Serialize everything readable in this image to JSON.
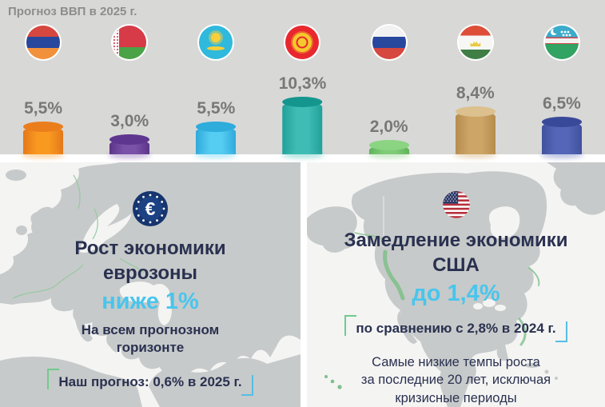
{
  "header": {
    "title": "Прогноз ВВП в 2025 г."
  },
  "chart_data": {
    "type": "bar",
    "title": "Прогноз ВВП в 2025 г.",
    "unit": "%",
    "categories": [
      "Армения",
      "Беларусь",
      "Казахстан",
      "Кыргызстан",
      "Россия",
      "Таджикистан",
      "Узбекистан"
    ],
    "values": [
      5.5,
      3.0,
      5.5,
      10.3,
      2.0,
      8.4,
      6.5
    ],
    "bars": [
      {
        "country": "Армения",
        "value": 5.5,
        "label": "5,5%",
        "color": "#f9991f",
        "color_edge": "#e4781a",
        "color_top": "#ea7e1d"
      },
      {
        "country": "Беларусь",
        "value": 3.0,
        "label": "3,0%",
        "color": "#7a52a8",
        "color_edge": "#5b3489",
        "color_top": "#5e3690"
      },
      {
        "country": "Казахстан",
        "value": 5.5,
        "label": "5,5%",
        "color": "#55ccf2",
        "color_edge": "#2fa9da",
        "color_top": "#2eacdb"
      },
      {
        "country": "Кыргызстан",
        "value": 10.3,
        "label": "10,3%",
        "color": "#3fbdb4",
        "color_edge": "#21a09a",
        "color_top": "#14968f"
      },
      {
        "country": "Россия",
        "value": 2.0,
        "label": "2,0%",
        "color": "#7fcb78",
        "color_edge": "#5cb256",
        "color_top": "#8bd481"
      },
      {
        "country": "Таджикистан",
        "value": 8.4,
        "label": "8,4%",
        "color": "#cda566",
        "color_edge": "#b68c4d",
        "color_top": "#dcc18e"
      },
      {
        "country": "Узбекистан",
        "value": 6.5,
        "label": "6,5%",
        "color": "#5566b8",
        "color_edge": "#41519f",
        "color_top": "#39499a"
      }
    ]
  },
  "panels": {
    "eurozone": {
      "icon": "eu-euro-badge",
      "heading": "Рост экономики\nеврозоны",
      "highlight": "ниже 1%",
      "subtext": "На всем прогнозном\nгоризонте",
      "callout": "Наш прогноз: 0,6% в 2025 г."
    },
    "usa": {
      "icon": "usa-flag-badge",
      "heading": "Замедление экономики\nСША",
      "highlight": "до 1,4%",
      "callout": "по сравнению с 2,8% в 2024 г.",
      "note": "Самые низкие темпы роста\nза последние 20 лет, исключая\nкризисные периоды"
    }
  },
  "colors": {
    "accent_cyan": "#49c5ec",
    "navy": "#2a3150",
    "title_gray": "#8d8d8d",
    "value_gray": "#787878",
    "bracket_green": "#6fcb8b",
    "bracket_blue": "#55bee4",
    "top_background": "#d8d8d7",
    "map_land": "#c7caca",
    "map_sea": "#f4f4f3",
    "map_border_green": "#94c9a0"
  }
}
